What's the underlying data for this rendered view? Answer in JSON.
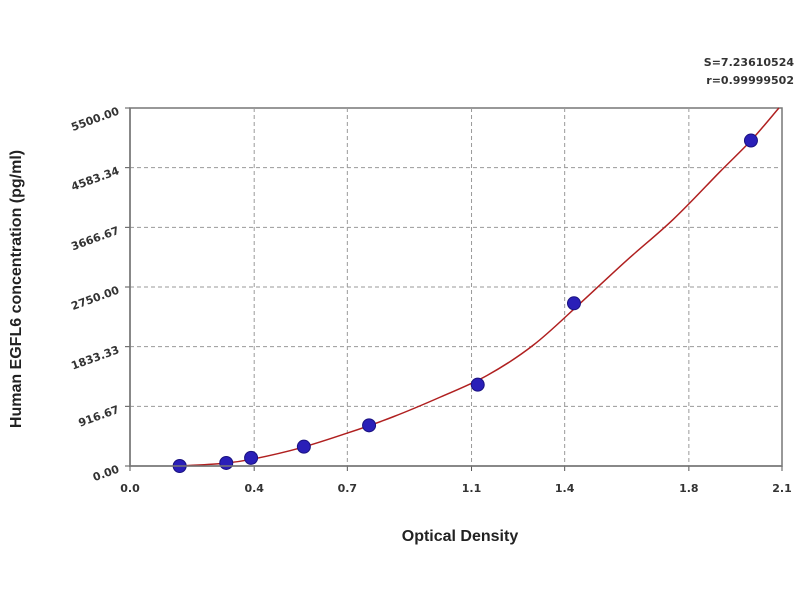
{
  "chart_data": {
    "type": "scatter",
    "xlabel": "Optical Density",
    "ylabel": "Human EGFL6 concentration (pg/ml)",
    "xlim": [
      0.0,
      2.1
    ],
    "ylim": [
      0.0,
      5500.0
    ],
    "x_ticks": [
      0.0,
      0.4,
      0.7,
      1.1,
      1.4,
      1.8,
      2.1
    ],
    "x_tick_labels": [
      "0.0",
      "0.4",
      "0.7",
      "1.1",
      "1.4",
      "1.8",
      "2.1"
    ],
    "y_ticks": [
      0.0,
      916.67,
      1833.33,
      2750.0,
      3666.67,
      4583.34,
      5500.0
    ],
    "y_tick_labels": [
      "0.00",
      "916.67",
      "1833.33",
      "2750.00",
      "3666.67",
      "4583.34",
      "5500.00"
    ],
    "grid": true,
    "stats": [
      "S=7.23610524",
      "r=0.99999502"
    ],
    "series": [
      {
        "kind": "points",
        "color": "#2a1fb8",
        "x": [
          0.16,
          0.31,
          0.39,
          0.56,
          0.77,
          1.12,
          1.43,
          2.0
        ],
        "y": [
          0,
          47,
          125,
          297,
          625,
          1250,
          2500,
          5000
        ]
      },
      {
        "kind": "fit-curve",
        "color": "#b02020",
        "x": [
          0.16,
          0.3,
          0.4,
          0.55,
          0.7,
          0.85,
          1.0,
          1.15,
          1.3,
          1.45,
          1.6,
          1.75,
          1.9,
          2.0,
          2.09
        ],
        "y": [
          0,
          40,
          110,
          280,
          505,
          760,
          1060,
          1390,
          1860,
          2500,
          3160,
          3790,
          4520,
          5000,
          5500
        ]
      }
    ]
  }
}
